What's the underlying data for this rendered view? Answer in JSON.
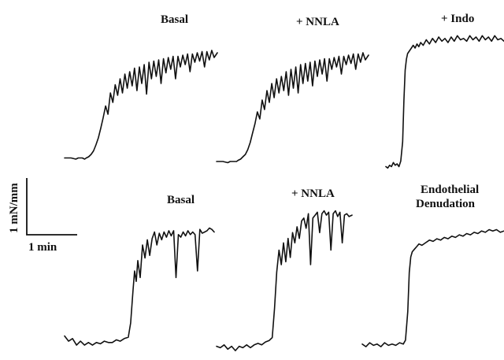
{
  "chart_data": [
    {
      "type": "line",
      "title": "Basal",
      "x": [
        0,
        8,
        14,
        17,
        19,
        22,
        25,
        27,
        30,
        33,
        36,
        39,
        42,
        45,
        48,
        51,
        54,
        57,
        60,
        63,
        66,
        69,
        72,
        75,
        78,
        81,
        84,
        87,
        90,
        93,
        96,
        99,
        102,
        105,
        108,
        111,
        114,
        117,
        120,
        123,
        126,
        129,
        132,
        135,
        138,
        141,
        144,
        147,
        150,
        153,
        156,
        159,
        162,
        165,
        168,
        171,
        174,
        177,
        180,
        183,
        186,
        190
      ],
      "values": [
        3,
        3,
        2,
        3,
        3,
        3,
        2,
        3,
        4,
        6,
        9,
        14,
        20,
        28,
        37,
        47,
        40,
        58,
        50,
        65,
        56,
        70,
        58,
        74,
        62,
        76,
        64,
        79,
        60,
        80,
        66,
        82,
        57,
        84,
        70,
        85,
        72,
        86,
        66,
        87,
        75,
        88,
        78,
        89,
        70,
        89,
        80,
        90,
        82,
        91,
        76,
        91,
        84,
        92,
        85,
        93,
        80,
        93,
        86,
        94,
        88,
        92
      ]
    },
    {
      "type": "line",
      "title": "+ NNLA",
      "x": [
        0,
        8,
        14,
        17,
        19,
        22,
        25,
        27,
        30,
        33,
        36,
        39,
        42,
        45,
        48,
        51,
        54,
        57,
        60,
        63,
        66,
        69,
        72,
        75,
        78,
        81,
        84,
        87,
        90,
        93,
        96,
        99,
        102,
        105,
        108,
        111,
        114,
        117,
        120,
        123,
        126,
        129,
        132,
        135,
        138,
        141,
        144,
        147,
        150,
        153,
        156,
        159,
        162,
        165,
        168,
        171,
        174,
        177,
        180,
        183,
        186,
        190
      ],
      "values": [
        2,
        2,
        1,
        2,
        2,
        2,
        2,
        3,
        4,
        6,
        8,
        12,
        18,
        26,
        34,
        44,
        38,
        54,
        46,
        62,
        52,
        68,
        56,
        72,
        60,
        74,
        62,
        78,
        58,
        80,
        64,
        82,
        60,
        84,
        68,
        85,
        70,
        86,
        66,
        87,
        74,
        88,
        76,
        89,
        70,
        89,
        80,
        90,
        82,
        91,
        76,
        91,
        84,
        92,
        85,
        93,
        80,
        93,
        86,
        94,
        88,
        92
      ]
    },
    {
      "type": "line",
      "title": "+ Indo",
      "x": [
        0,
        3,
        6,
        9,
        12,
        15,
        18,
        21,
        24,
        27,
        29,
        31,
        33,
        35,
        38,
        41,
        44,
        47,
        50,
        53,
        56,
        60,
        65,
        70,
        75,
        80,
        85,
        90,
        95,
        100,
        105,
        110,
        115,
        120,
        125,
        130,
        135,
        140,
        145,
        150,
        155,
        160,
        165,
        170,
        175,
        180,
        185,
        190
      ],
      "values": [
        2,
        1,
        3,
        2,
        5,
        3,
        4,
        2,
        6,
        20,
        50,
        72,
        80,
        84,
        86,
        88,
        90,
        88,
        91,
        89,
        92,
        90,
        94,
        91,
        95,
        92,
        96,
        93,
        95,
        92,
        96,
        93,
        97,
        94,
        95,
        93,
        97,
        94,
        96,
        93,
        97,
        94,
        96,
        93,
        97,
        94,
        95,
        93
      ]
    },
    {
      "type": "line",
      "title": "Basal",
      "x": [
        0,
        5,
        10,
        15,
        20,
        25,
        30,
        35,
        40,
        45,
        50,
        55,
        60,
        65,
        70,
        75,
        80,
        83,
        86,
        88,
        90,
        92,
        95,
        98,
        101,
        104,
        107,
        110,
        113,
        116,
        119,
        122,
        125,
        128,
        131,
        134,
        137,
        140,
        143,
        146,
        149,
        152,
        155,
        158,
        161,
        164,
        167,
        170,
        173,
        176,
        179,
        182,
        185,
        188
      ],
      "values": [
        10,
        6,
        8,
        3,
        6,
        3,
        5,
        3,
        5,
        4,
        6,
        5,
        5,
        7,
        6,
        8,
        9,
        20,
        45,
        60,
        52,
        68,
        55,
        80,
        70,
        84,
        72,
        85,
        90,
        80,
        89,
        84,
        90,
        86,
        91,
        87,
        91,
        55,
        88,
        86,
        90,
        87,
        91,
        88,
        90,
        88,
        60,
        92,
        89,
        90,
        91,
        93,
        92,
        90
      ]
    },
    {
      "type": "line",
      "title": "+ NNLA",
      "x": [
        0,
        5,
        10,
        15,
        20,
        25,
        30,
        35,
        40,
        45,
        50,
        55,
        60,
        65,
        70,
        74,
        77,
        80,
        83,
        86,
        89,
        92,
        95,
        98,
        101,
        104,
        107,
        110,
        113,
        116,
        119,
        122,
        125,
        128,
        131,
        134,
        137,
        140,
        143,
        146,
        149,
        152,
        155,
        158,
        161,
        164,
        167,
        170,
        173,
        176,
        180
      ],
      "values": [
        4,
        3,
        5,
        2,
        4,
        1,
        4,
        3,
        5,
        3,
        5,
        6,
        5,
        7,
        8,
        10,
        30,
        55,
        70,
        60,
        75,
        62,
        78,
        65,
        82,
        75,
        86,
        78,
        90,
        92,
        85,
        95,
        60,
        92,
        94,
        96,
        82,
        95,
        97,
        94,
        96,
        70,
        95,
        97,
        93,
        96,
        75,
        94,
        95,
        93,
        94
      ]
    },
    {
      "type": "line",
      "title": "Endothelial Denudation",
      "x": [
        0,
        5,
        10,
        15,
        20,
        25,
        30,
        35,
        40,
        45,
        50,
        55,
        58,
        61,
        63,
        65,
        67,
        70,
        73,
        76,
        80,
        85,
        90,
        95,
        100,
        105,
        110,
        115,
        120,
        125,
        130,
        135,
        140,
        145,
        150,
        155,
        160,
        165,
        170,
        175,
        180,
        185,
        190
      ],
      "values": [
        5,
        3,
        6,
        4,
        5,
        3,
        6,
        4,
        5,
        4,
        6,
        5,
        8,
        30,
        60,
        72,
        76,
        78,
        80,
        82,
        81,
        83,
        85,
        84,
        86,
        85,
        87,
        86,
        88,
        87,
        89,
        88,
        90,
        89,
        91,
        90,
        92,
        91,
        93,
        92,
        93,
        91,
        92
      ]
    }
  ],
  "scale_bar": {
    "vertical_label": "1 mN/mm",
    "horizontal_label": "1 min"
  }
}
